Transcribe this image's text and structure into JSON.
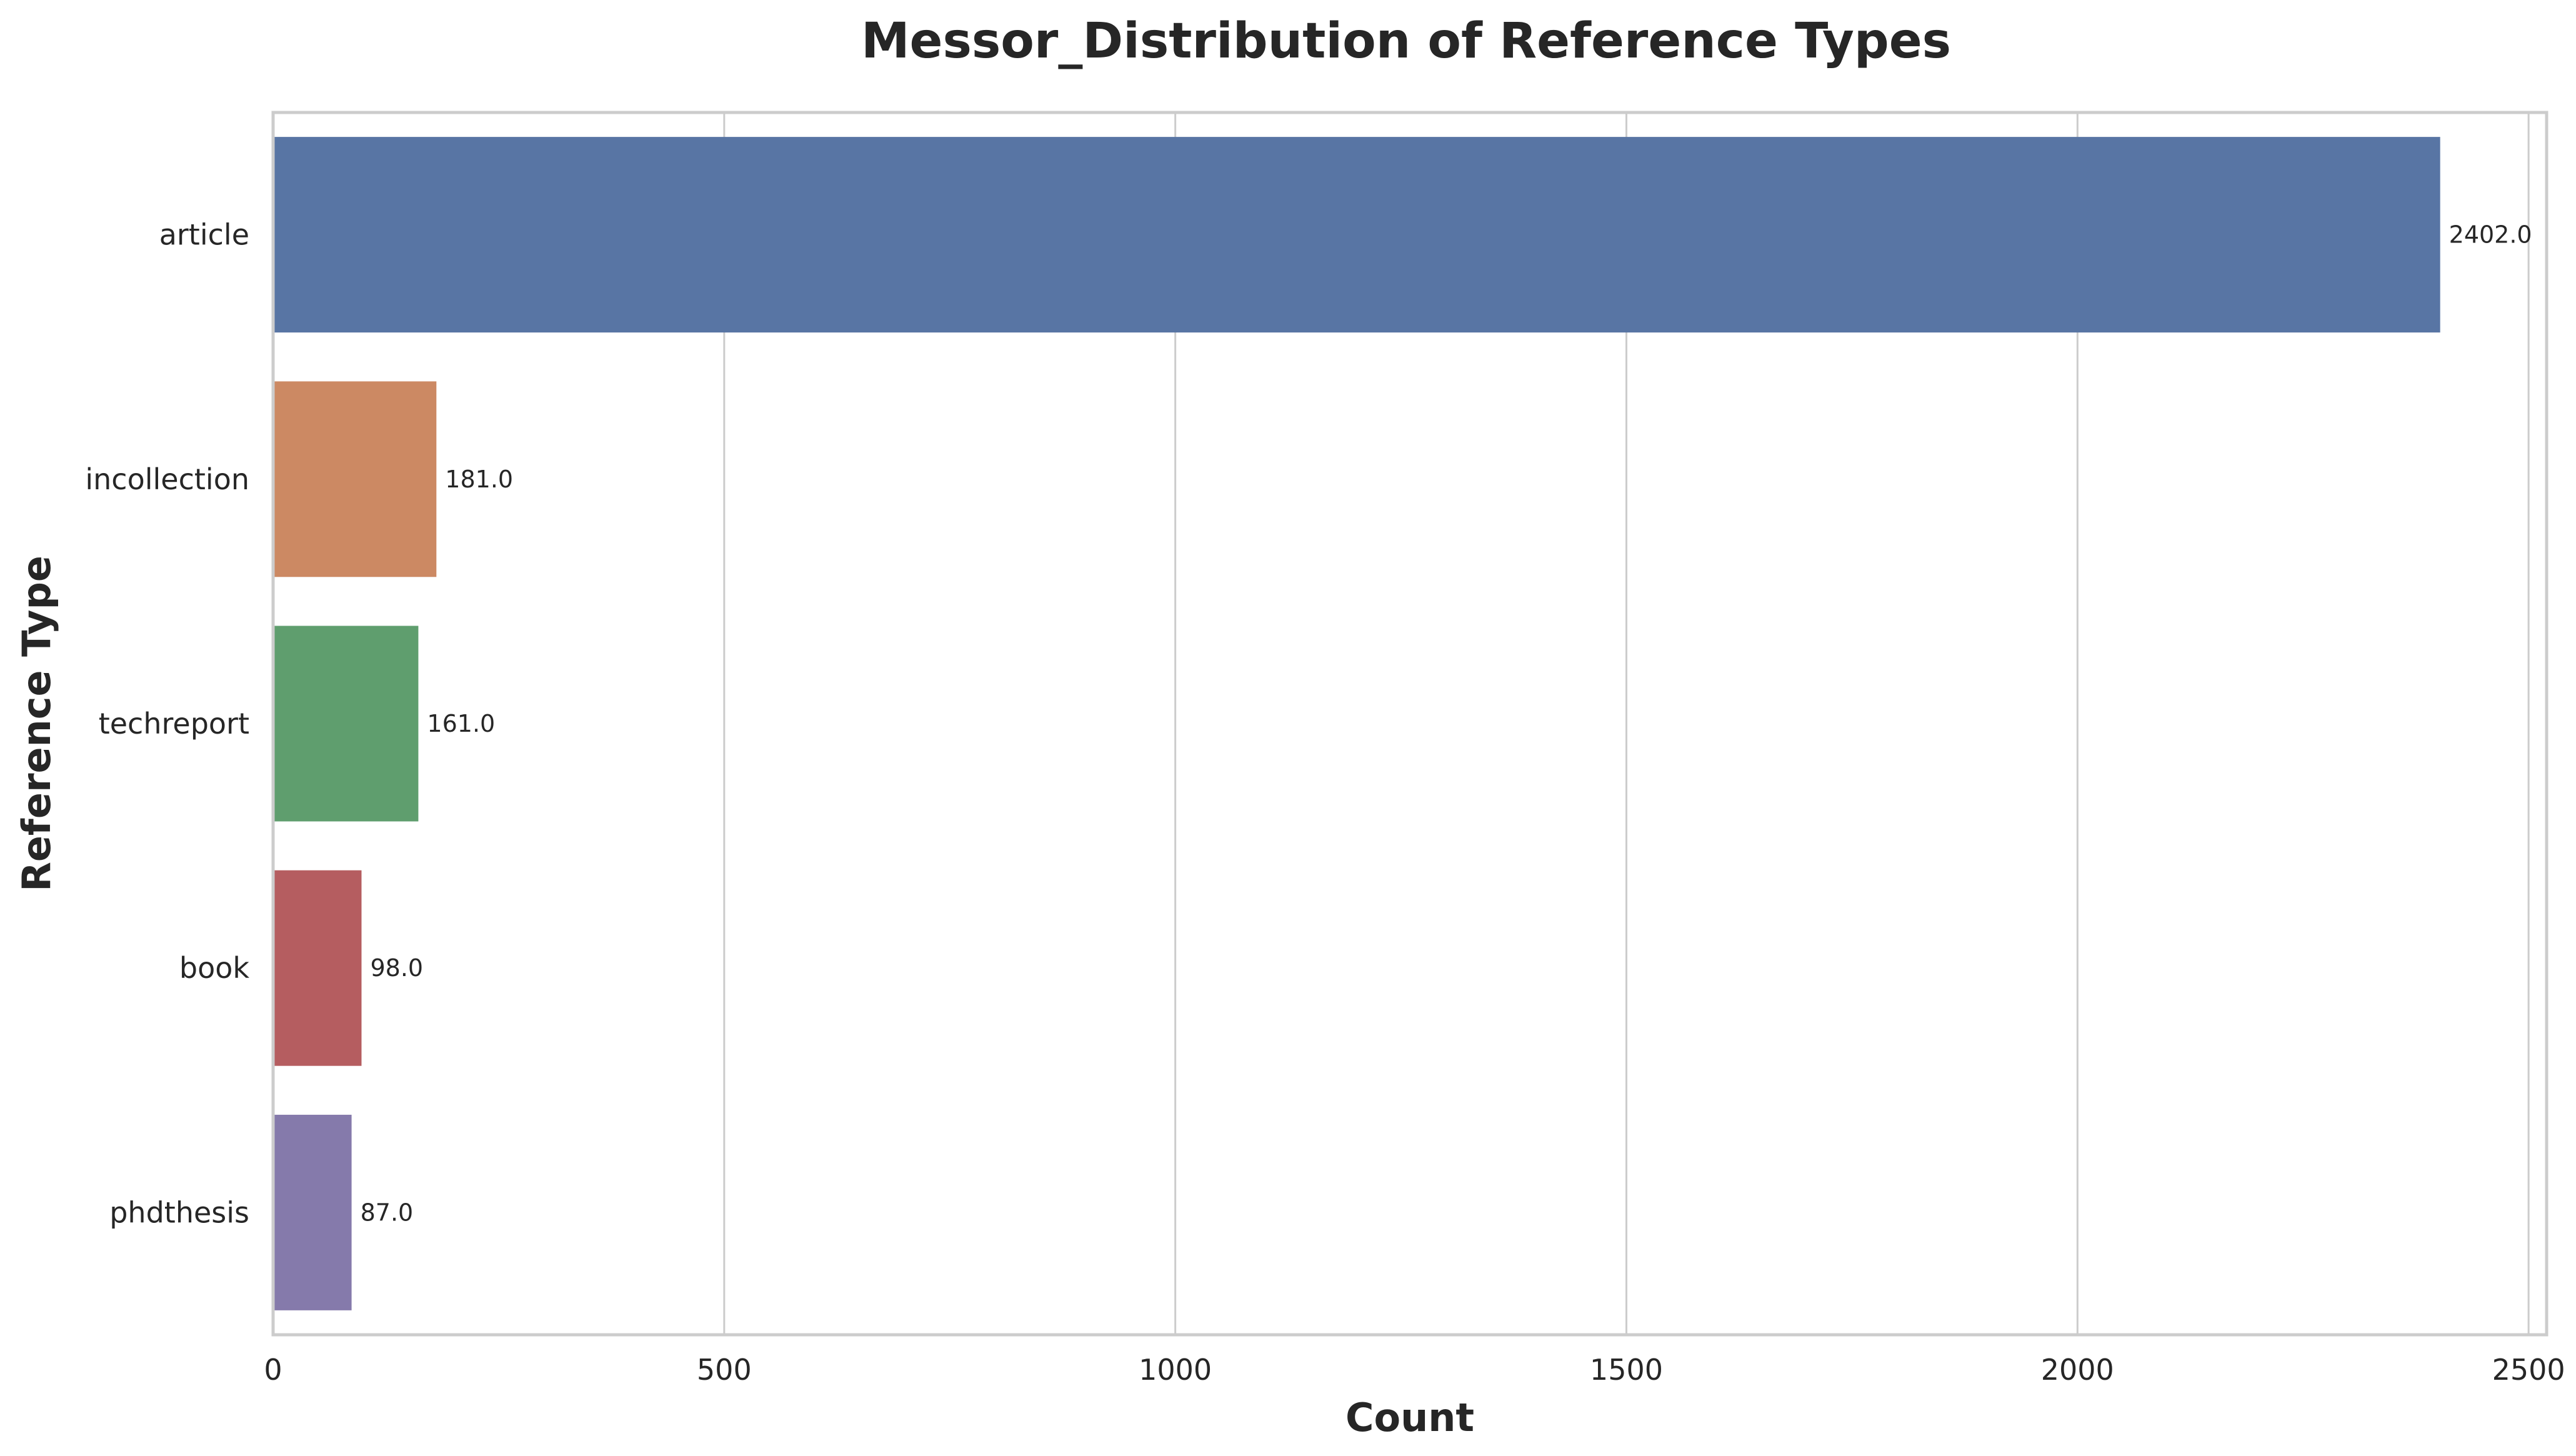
{
  "chart_data": {
    "type": "bar",
    "orientation": "horizontal",
    "title": "Messor_Distribution of Reference Types",
    "xlabel": "Count",
    "ylabel": "Reference Type",
    "categories": [
      "article",
      "incollection",
      "techreport",
      "book",
      "phdthesis"
    ],
    "values": [
      2402,
      181,
      161,
      98,
      87
    ],
    "value_labels": [
      "2402.0",
      "181.0",
      "161.0",
      "98.0",
      "87.0"
    ],
    "colors": [
      "#5875a4",
      "#cc8963",
      "#5f9e6e",
      "#b55d60",
      "#857aab"
    ],
    "xlim": [
      0,
      2520
    ],
    "xticks": [
      0,
      500,
      1000,
      1500,
      2000,
      2500
    ],
    "xtick_labels": [
      "0",
      "500",
      "1000",
      "1500",
      "2000",
      "2500"
    ],
    "grid": "vertical",
    "legend": "none"
  }
}
